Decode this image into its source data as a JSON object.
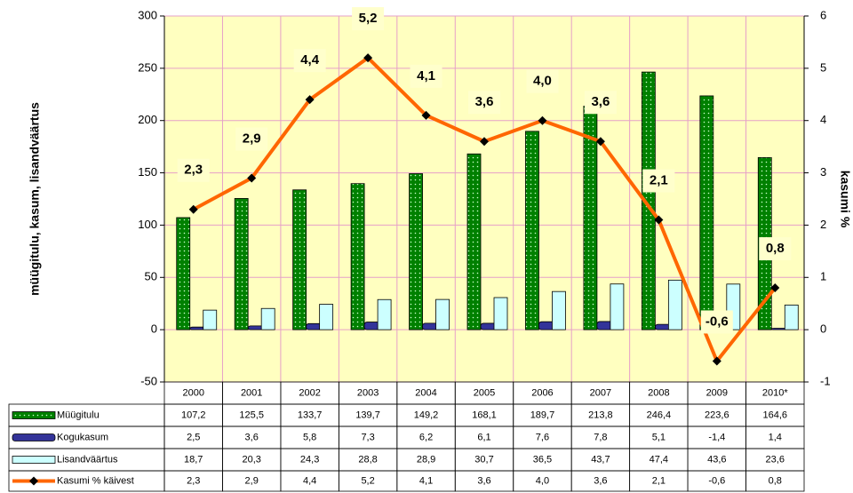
{
  "chart_data": {
    "type": "bar",
    "categories": [
      "2000",
      "2001",
      "2002",
      "2003",
      "2004",
      "2005",
      "2006",
      "2007",
      "2008",
      "2009",
      "2010*"
    ],
    "series": [
      {
        "name": "Müügitulu",
        "color": "#008000",
        "values": [
          107.2,
          125.5,
          133.7,
          139.7,
          149.2,
          168.1,
          189.7,
          213.8,
          246.4,
          223.6,
          164.6
        ],
        "value_labels": [
          "107,2",
          "125,5",
          "133,7",
          "139,7",
          "149,2",
          "168,1",
          "189,7",
          "213,8",
          "246,4",
          "223,6",
          "164,6"
        ]
      },
      {
        "name": "Kogukasum",
        "color": "#333399",
        "values": [
          2.5,
          3.6,
          5.8,
          7.3,
          6.2,
          6.1,
          7.6,
          7.8,
          5.1,
          -1.4,
          1.4
        ],
        "value_labels": [
          "2,5",
          "3,6",
          "5,8",
          "7,3",
          "6,2",
          "6,1",
          "7,6",
          "7,8",
          "5,1",
          "-1,4",
          "1,4"
        ]
      },
      {
        "name": "Lisandväärtus",
        "color": "#ccffff",
        "values": [
          18.7,
          20.3,
          24.3,
          28.8,
          28.9,
          30.7,
          36.5,
          43.7,
          47.4,
          43.6,
          23.6
        ],
        "value_labels": [
          "18,7",
          "20,3",
          "24,3",
          "28,8",
          "28,9",
          "30,7",
          "36,5",
          "43,7",
          "47,4",
          "43,6",
          "23,6"
        ]
      },
      {
        "name": "Kasumi % käivest",
        "type": "line",
        "axis": "y2",
        "color": "#ff6600",
        "values": [
          2.3,
          2.9,
          4.4,
          5.2,
          4.1,
          3.6,
          4.0,
          3.6,
          2.1,
          -0.6,
          0.8
        ],
        "value_labels": [
          "2,3",
          "2,9",
          "4,4",
          "5,2",
          "4,1",
          "3,6",
          "4,0",
          "3,6",
          "2,1",
          "-0,6",
          "0,8"
        ]
      }
    ],
    "ylabel": "müügitulu, kasum, lisandväärtus",
    "y2label": "kasumi %",
    "ylim": [
      -50,
      300
    ],
    "yticks": [
      -50,
      0,
      50,
      100,
      150,
      200,
      250,
      300
    ],
    "y2lim": [
      -1,
      6
    ],
    "y2ticks": [
      -1,
      0,
      1,
      2,
      3,
      4,
      5,
      6
    ],
    "grid": true
  }
}
